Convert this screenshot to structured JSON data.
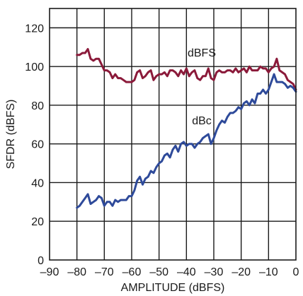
{
  "chart_data": {
    "type": "line",
    "xlabel": "AMPLITUDE (dBFS)",
    "ylabel": "SFDR (dBFS)",
    "xlim": [
      -90,
      0
    ],
    "ylim": [
      0,
      130
    ],
    "x_ticks": [
      -90,
      -80,
      -70,
      -60,
      -50,
      -40,
      -30,
      -20,
      -10,
      0
    ],
    "y_ticks": [
      0,
      20,
      40,
      60,
      80,
      100,
      120
    ],
    "x_tick_labels": [
      "–90",
      "–80",
      "–70",
      "–60",
      "–50",
      "–40",
      "–30",
      "–20",
      "–10",
      "0"
    ],
    "y_tick_labels": [
      "0",
      "20",
      "40",
      "60",
      "80",
      "100",
      "120"
    ],
    "grid": true,
    "series": [
      {
        "name": "dBFS",
        "color": "#8b1a3a",
        "x": [
          -80,
          -79,
          -78,
          -77,
          -76,
          -75,
          -74,
          -73,
          -72,
          -71,
          -70,
          -69,
          -68,
          -67,
          -66,
          -65,
          -64,
          -63,
          -62,
          -61,
          -60,
          -59,
          -58,
          -57,
          -56,
          -55,
          -54,
          -53,
          -52,
          -51,
          -50,
          -49,
          -48,
          -47,
          -46,
          -45,
          -44,
          -43,
          -42,
          -41,
          -40,
          -39,
          -38,
          -37,
          -36,
          -35,
          -34,
          -33,
          -32,
          -31,
          -30,
          -29,
          -28,
          -27,
          -26,
          -25,
          -24,
          -23,
          -22,
          -21,
          -20,
          -19,
          -18,
          -17,
          -16,
          -15,
          -14,
          -13,
          -12,
          -11,
          -10,
          -9,
          -8,
          -7,
          -6,
          -5,
          -4,
          -3,
          -2,
          -1,
          0
        ],
        "y": [
          106,
          106,
          107,
          107,
          109,
          104,
          103,
          104,
          104,
          101,
          98,
          98,
          97,
          94,
          96,
          94,
          94,
          93,
          92,
          92,
          92,
          93,
          97,
          98,
          94,
          95,
          97,
          98,
          93,
          95,
          96,
          96,
          97,
          95,
          98,
          98,
          97,
          95,
          98,
          96,
          99,
          95,
          97,
          98,
          94,
          93,
          95,
          95,
          99,
          94,
          93,
          97,
          98,
          97,
          97,
          98,
          98,
          97,
          99,
          97,
          98,
          99,
          97,
          100,
          98,
          98,
          98,
          100,
          99,
          99,
          97,
          99,
          100,
          104,
          98,
          97,
          96,
          93,
          92,
          91,
          88
        ]
      },
      {
        "name": "dBc",
        "color": "#2e4a9a",
        "x": [
          -80,
          -79,
          -78,
          -77,
          -76,
          -75,
          -74,
          -73,
          -72,
          -71,
          -70,
          -69,
          -68,
          -67,
          -66,
          -65,
          -64,
          -63,
          -62,
          -61,
          -60,
          -59,
          -58,
          -57,
          -56,
          -55,
          -54,
          -53,
          -52,
          -51,
          -50,
          -49,
          -48,
          -47,
          -46,
          -45,
          -44,
          -43,
          -42,
          -41,
          -40,
          -39,
          -38,
          -37,
          -36,
          -35,
          -34,
          -33,
          -32,
          -31,
          -30,
          -29,
          -28,
          -27,
          -26,
          -25,
          -24,
          -23,
          -22,
          -21,
          -20,
          -19,
          -18,
          -17,
          -16,
          -15,
          -14,
          -13,
          -12,
          -11,
          -10,
          -9,
          -8,
          -7,
          -6,
          -5,
          -4,
          -3,
          -2,
          -1,
          0
        ],
        "y": [
          27,
          28,
          30,
          32,
          34,
          29,
          30,
          31,
          33,
          32,
          28,
          30,
          30,
          28,
          31,
          30,
          31,
          31,
          31,
          33,
          33,
          36,
          41,
          43,
          39,
          42,
          43,
          46,
          45,
          48,
          50,
          51,
          54,
          55,
          53,
          57,
          59,
          56,
          60,
          61,
          59,
          60,
          60,
          58,
          60,
          61,
          63,
          64,
          65,
          60,
          63,
          67,
          70,
          72,
          71,
          74,
          76,
          76,
          77,
          79,
          78,
          81,
          82,
          80,
          83,
          81,
          86,
          86,
          88,
          86,
          88,
          92,
          96,
          92,
          92,
          92,
          91,
          89,
          90,
          89,
          87
        ]
      }
    ]
  }
}
